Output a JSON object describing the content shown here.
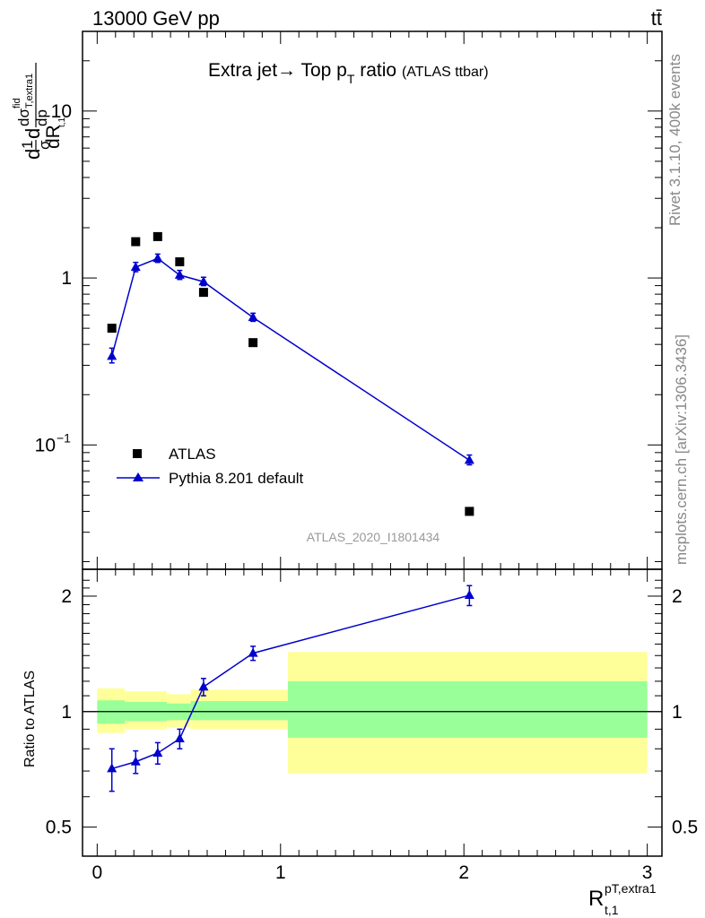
{
  "header": {
    "left": "13000 GeV pp",
    "right": "tt̄"
  },
  "side_labels": {
    "rivet": "Rivet 3.1.10,  400k events",
    "mcplots": "mcplots.cern.ch [arXiv:1306.3436]"
  },
  "watermark": "ATLAS_2020_I1801434",
  "chart_data": [
    {
      "type": "scatter",
      "title": "Extra jet→ Top p_T ratio",
      "title_main": "Extra jet→ Top p",
      "title_sub": "T",
      "title_tail": " ratio",
      "subtitle": "(ATLAS ttbar)",
      "ylabel": "d(1/σ dσ^fid/dp_T,extra1)/dR_t,1",
      "yscale": "log",
      "ylim": [
        0.018,
        30
      ],
      "xlim": [
        -0.08,
        3.08
      ],
      "yticks": [
        {
          "value": 0.1,
          "label": "10",
          "exp": "−1"
        },
        {
          "value": 1,
          "label": "1",
          "exp": ""
        },
        {
          "value": 10,
          "label": "10",
          "exp": ""
        }
      ],
      "legend_position": "bottom-left",
      "series": [
        {
          "name": "ATLAS",
          "marker": "square",
          "color": "#000000",
          "x": [
            0.08,
            0.21,
            0.33,
            0.45,
            0.58,
            0.85,
            2.03
          ],
          "y": [
            0.5,
            1.65,
            1.77,
            1.25,
            0.82,
            0.41,
            0.04
          ]
        },
        {
          "name": "Pythia 8.201 default",
          "marker": "triangle",
          "color": "#0000cc",
          "x": [
            0.08,
            0.21,
            0.33,
            0.45,
            0.58,
            0.85,
            2.03
          ],
          "y": [
            0.34,
            1.16,
            1.31,
            1.04,
            0.95,
            0.58,
            0.081
          ],
          "yerr_low": [
            0.03,
            0.07,
            0.07,
            0.06,
            0.05,
            0.03,
            0.005
          ],
          "yerr_high": [
            0.04,
            0.08,
            0.08,
            0.07,
            0.06,
            0.035,
            0.006
          ]
        }
      ]
    },
    {
      "type": "scatter",
      "ylabel": "Ratio to ATLAS",
      "xlabel": "R_t,1^pT,extra1",
      "yscale": "log",
      "ylim": [
        0.42,
        2.35
      ],
      "xlim": [
        -0.08,
        3.08
      ],
      "xticks": [
        0,
        1,
        2,
        3
      ],
      "yticks": [
        0.5,
        1,
        2
      ],
      "reference_line": 1,
      "bands": [
        {
          "x0": 0.0,
          "x1": 0.15,
          "y_outer": [
            0.88,
            1.15
          ],
          "y_inner": [
            0.93,
            1.07
          ]
        },
        {
          "x0": 0.15,
          "x1": 0.38,
          "y_outer": [
            0.9,
            1.13
          ],
          "y_inner": [
            0.945,
            1.06
          ]
        },
        {
          "x0": 0.38,
          "x1": 0.51,
          "y_outer": [
            0.91,
            1.11
          ],
          "y_inner": [
            0.95,
            1.05
          ]
        },
        {
          "x0": 0.51,
          "x1": 1.04,
          "y_outer": [
            0.9,
            1.14
          ],
          "y_inner": [
            0.95,
            1.065
          ]
        },
        {
          "x0": 1.04,
          "x1": 3.0,
          "y_outer": [
            0.69,
            1.43
          ],
          "y_inner": [
            0.855,
            1.2
          ]
        }
      ],
      "series": [
        {
          "name": "Pythia 8.201 default",
          "color": "#0000cc",
          "x": [
            0.08,
            0.21,
            0.33,
            0.45,
            0.58,
            0.85,
            2.03
          ],
          "y": [
            0.71,
            0.74,
            0.78,
            0.85,
            1.16,
            1.42,
            2.01
          ],
          "yerr_low": [
            0.09,
            0.05,
            0.05,
            0.05,
            0.06,
            0.06,
            0.12
          ],
          "yerr_high": [
            0.09,
            0.05,
            0.05,
            0.05,
            0.06,
            0.06,
            0.12
          ]
        }
      ]
    }
  ],
  "colors": {
    "band_outer": "#ffff99",
    "band_inner": "#99ff99",
    "mc": "#0000cc",
    "data": "#000000"
  }
}
